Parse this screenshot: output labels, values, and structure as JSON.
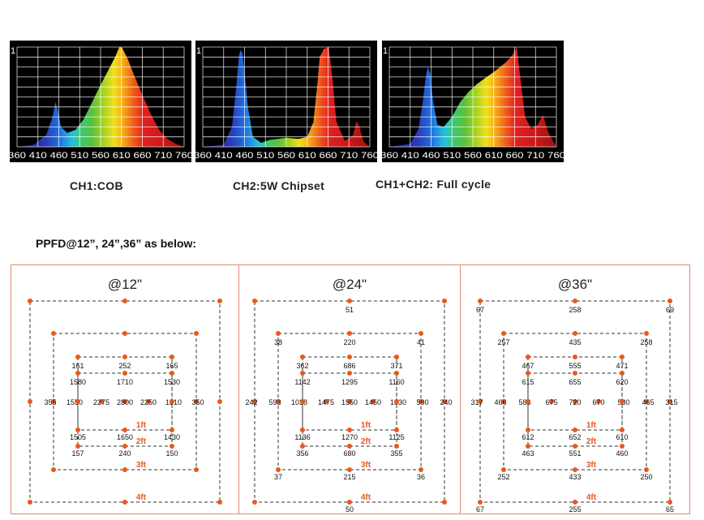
{
  "spectra": [
    {
      "caption": "CH1:COB",
      "y_top_label": "1",
      "x_ticks": [
        "360",
        "410",
        "460",
        "510",
        "560",
        "610",
        "660",
        "710",
        "760"
      ],
      "points": [
        [
          360,
          0
        ],
        [
          400,
          0.02
        ],
        [
          430,
          0.12
        ],
        [
          445,
          0.3
        ],
        [
          452,
          0.45
        ],
        [
          458,
          0.36
        ],
        [
          465,
          0.2
        ],
        [
          480,
          0.14
        ],
        [
          500,
          0.17
        ],
        [
          520,
          0.28
        ],
        [
          540,
          0.45
        ],
        [
          560,
          0.62
        ],
        [
          580,
          0.78
        ],
        [
          595,
          0.9
        ],
        [
          605,
          1.0
        ],
        [
          612,
          0.99
        ],
        [
          625,
          0.88
        ],
        [
          640,
          0.72
        ],
        [
          660,
          0.52
        ],
        [
          680,
          0.33
        ],
        [
          700,
          0.17
        ],
        [
          720,
          0.08
        ],
        [
          740,
          0.03
        ],
        [
          760,
          0
        ]
      ]
    },
    {
      "caption": "CH2:5W Chipset",
      "y_top_label": "1",
      "x_ticks": [
        "360",
        "410",
        "460",
        "510",
        "560",
        "610",
        "660",
        "710",
        "760"
      ],
      "points": [
        [
          360,
          0
        ],
        [
          410,
          0.02
        ],
        [
          430,
          0.2
        ],
        [
          440,
          0.6
        ],
        [
          447,
          0.92
        ],
        [
          450,
          0.97
        ],
        [
          455,
          0.94
        ],
        [
          460,
          0.75
        ],
        [
          468,
          0.4
        ],
        [
          480,
          0.1
        ],
        [
          500,
          0.04
        ],
        [
          520,
          0.07
        ],
        [
          560,
          0.09
        ],
        [
          590,
          0.08
        ],
        [
          610,
          0.1
        ],
        [
          625,
          0.25
        ],
        [
          635,
          0.65
        ],
        [
          640,
          0.9
        ],
        [
          650,
          0.98
        ],
        [
          662,
          1.0
        ],
        [
          670,
          0.7
        ],
        [
          680,
          0.25
        ],
        [
          700,
          0.06
        ],
        [
          720,
          0.12
        ],
        [
          728,
          0.26
        ],
        [
          735,
          0.2
        ],
        [
          745,
          0.05
        ],
        [
          760,
          0
        ]
      ]
    },
    {
      "caption": "CH1+CH2: Full cycle",
      "y_top_label": "1",
      "x_ticks": [
        "360",
        "410",
        "460",
        "510",
        "560",
        "610",
        "660",
        "710",
        "760"
      ],
      "points": [
        [
          360,
          0
        ],
        [
          410,
          0.03
        ],
        [
          430,
          0.18
        ],
        [
          440,
          0.45
        ],
        [
          448,
          0.72
        ],
        [
          452,
          0.8
        ],
        [
          458,
          0.73
        ],
        [
          465,
          0.45
        ],
        [
          475,
          0.22
        ],
        [
          490,
          0.2
        ],
        [
          510,
          0.3
        ],
        [
          530,
          0.45
        ],
        [
          550,
          0.55
        ],
        [
          570,
          0.63
        ],
        [
          590,
          0.69
        ],
        [
          610,
          0.75
        ],
        [
          625,
          0.8
        ],
        [
          640,
          0.85
        ],
        [
          655,
          0.92
        ],
        [
          665,
          1.0
        ],
        [
          672,
          0.75
        ],
        [
          685,
          0.3
        ],
        [
          700,
          0.18
        ],
        [
          715,
          0.22
        ],
        [
          728,
          0.32
        ],
        [
          740,
          0.15
        ],
        [
          760,
          0
        ]
      ]
    }
  ],
  "ppfd_heading": "PPFD@12”, 24”,36” as below:",
  "chart_data": [
    {
      "type": "line",
      "title": "CH1:COB",
      "xlabel": "",
      "ylabel": "",
      "x": [
        360,
        400,
        430,
        445,
        452,
        458,
        465,
        480,
        500,
        520,
        540,
        560,
        580,
        595,
        605,
        612,
        625,
        640,
        660,
        680,
        700,
        720,
        740,
        760
      ],
      "values": [
        0,
        0.02,
        0.12,
        0.3,
        0.45,
        0.36,
        0.2,
        0.14,
        0.17,
        0.28,
        0.45,
        0.62,
        0.78,
        0.9,
        1.0,
        0.99,
        0.88,
        0.72,
        0.52,
        0.33,
        0.17,
        0.08,
        0.03,
        0
      ],
      "xlim": [
        360,
        760
      ],
      "ylim": [
        0,
        1
      ],
      "grid": true
    },
    {
      "type": "line",
      "title": "CH2:5W Chipset",
      "xlabel": "",
      "ylabel": "",
      "x": [
        360,
        410,
        430,
        440,
        447,
        450,
        455,
        460,
        468,
        480,
        500,
        520,
        560,
        590,
        610,
        625,
        635,
        640,
        650,
        662,
        670,
        680,
        700,
        720,
        728,
        735,
        745,
        760
      ],
      "values": [
        0,
        0.02,
        0.2,
        0.6,
        0.92,
        0.97,
        0.94,
        0.75,
        0.4,
        0.1,
        0.04,
        0.07,
        0.09,
        0.08,
        0.1,
        0.25,
        0.65,
        0.9,
        0.98,
        1.0,
        0.7,
        0.25,
        0.06,
        0.12,
        0.26,
        0.2,
        0.05,
        0
      ],
      "xlim": [
        360,
        760
      ],
      "ylim": [
        0,
        1
      ],
      "grid": true
    },
    {
      "type": "line",
      "title": "CH1+CH2: Full cycle",
      "xlabel": "",
      "ylabel": "",
      "x": [
        360,
        410,
        430,
        440,
        448,
        452,
        458,
        465,
        475,
        490,
        510,
        530,
        550,
        570,
        590,
        610,
        625,
        640,
        655,
        665,
        672,
        685,
        700,
        715,
        728,
        740,
        760
      ],
      "values": [
        0,
        0.03,
        0.18,
        0.45,
        0.72,
        0.8,
        0.73,
        0.45,
        0.22,
        0.2,
        0.3,
        0.45,
        0.55,
        0.63,
        0.69,
        0.75,
        0.8,
        0.85,
        0.92,
        1.0,
        0.75,
        0.3,
        0.18,
        0.22,
        0.32,
        0.15,
        0
      ],
      "xlim": [
        360,
        760
      ],
      "ylim": [
        0,
        1
      ],
      "grid": true
    }
  ],
  "ppfd_panels": [
    {
      "title": "@12\"",
      "rings": [
        {
          "label": "1ft",
          "tl": "1580",
          "t": "1710",
          "tr": "1530",
          "l": "1550",
          "r": "1510",
          "bl": "1505",
          "b": "1650",
          "br": "1430",
          "ml": "2275",
          "mr": "2250",
          "center": "2800"
        },
        {
          "label": "2ft",
          "tl": "161",
          "t": "252",
          "tr": "165",
          "l": "",
          "r": "",
          "bl": "157",
          "b": "240",
          "br": "150"
        },
        {
          "label": "3ft",
          "tl": "",
          "t": "",
          "tr": "",
          "l": "355",
          "r": "350",
          "bl": "",
          "b": "",
          "br": ""
        },
        {
          "label": "4ft",
          "tl": "",
          "t": "",
          "tr": "",
          "l": "",
          "r": "",
          "bl": "",
          "b": "",
          "br": ""
        }
      ]
    },
    {
      "title": "@24\"",
      "rings": [
        {
          "label": "1ft",
          "tl": "1142",
          "t": "1295",
          "tr": "1160",
          "l": "1038",
          "r": "1030",
          "bl": "1136",
          "b": "1270",
          "br": "1125",
          "ml": "1475",
          "mr": "1450",
          "center": "1550"
        },
        {
          "label": "2ft",
          "tl": "362",
          "t": "686",
          "tr": "371",
          "l": "",
          "r": "",
          "bl": "356",
          "b": "680",
          "br": "355"
        },
        {
          "label": "3ft",
          "tl": "38",
          "t": "220",
          "tr": "41",
          "l": "593",
          "r": "590",
          "bl": "37",
          "b": "215",
          "br": "36"
        },
        {
          "label": "4ft",
          "tl": "",
          "t": "51",
          "tr": "",
          "l": "242",
          "r": "240",
          "bl": "",
          "b": "50",
          "br": ""
        }
      ]
    },
    {
      "title": "@36\"",
      "rings": [
        {
          "label": "1ft",
          "tl": "615",
          "t": "655",
          "tr": "620",
          "l": "583",
          "r": "580",
          "bl": "612",
          "b": "652",
          "br": "610",
          "ml": "675",
          "mr": "670",
          "center": "720"
        },
        {
          "label": "2ft",
          "tl": "467",
          "t": "555",
          "tr": "471",
          "l": "",
          "r": "",
          "bl": "463",
          "b": "551",
          "br": "460"
        },
        {
          "label": "3ft",
          "tl": "257",
          "t": "435",
          "tr": "258",
          "l": "466",
          "r": "465",
          "bl": "252",
          "b": "433",
          "br": "250"
        },
        {
          "label": "4ft",
          "tl": "67",
          "t": "258",
          "tr": "69",
          "l": "317",
          "r": "315",
          "bl": "67",
          "b": "255",
          "br": "65"
        }
      ]
    }
  ],
  "colors": {
    "marker": "#e8591e",
    "ring_label": "#e8591e",
    "frame": "#e0896a"
  }
}
